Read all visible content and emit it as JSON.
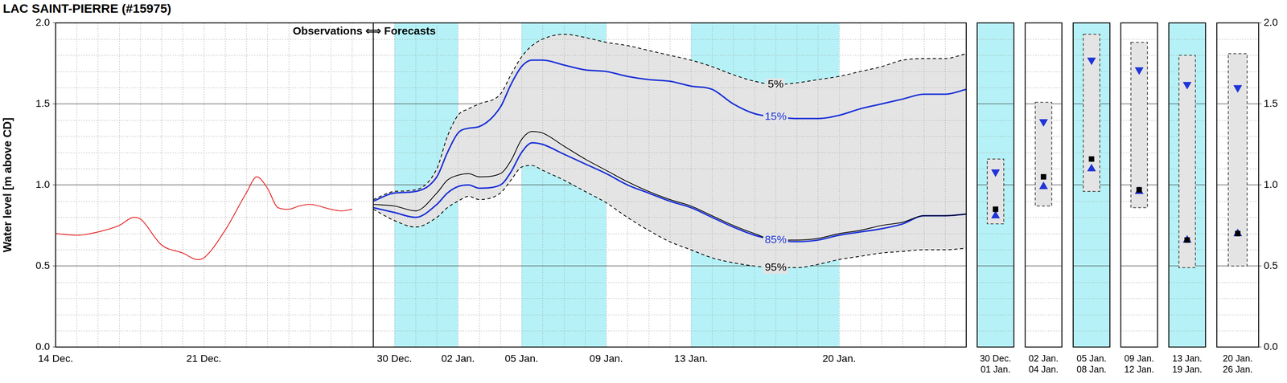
{
  "chart_data": [
    {
      "type": "line",
      "title": "LAC SAINT-PIERRE (#15975)",
      "y_label": "Water level [m above CD]",
      "annotation": "Observations ⟺ Forecasts",
      "divider": 15,
      "bands": [
        {
          "from": 16,
          "to": 19,
          "color": "#b5f1f6"
        },
        {
          "from": 22,
          "to": 26,
          "color": "#b5f1f6"
        },
        {
          "from": 30,
          "to": 37,
          "color": "#b5f1f6"
        }
      ],
      "range_fill": {
        "from": "5%",
        "to": "95%",
        "color": "#e4e4e4"
      },
      "xlim": [
        0,
        43
      ],
      "xticks": [
        {
          "value": 0,
          "label": "14 Dec."
        },
        {
          "value": 7,
          "label": "21 Dec."
        },
        {
          "value": 16,
          "label": "30 Dec."
        },
        {
          "value": 19,
          "label": "02 Jan."
        },
        {
          "value": 22,
          "label": "05 Jan."
        },
        {
          "value": 26,
          "label": "09 Jan."
        },
        {
          "value": 30,
          "label": "13 Jan."
        },
        {
          "value": 37,
          "label": "20 Jan."
        }
      ],
      "ylim": [
        0,
        2
      ],
      "yticks": [
        {
          "value": 0,
          "label": "0.0"
        },
        {
          "value": 0.5,
          "label": "0.5"
        },
        {
          "value": 1,
          "label": "1.0"
        },
        {
          "value": 1.5,
          "label": "1.5"
        },
        {
          "value": 2,
          "label": "2.0"
        }
      ],
      "grid": true,
      "series": [
        {
          "color": "#e31a1c",
          "line_style": "solid",
          "x": [
            0,
            1,
            2,
            3,
            3.7,
            4,
            5,
            6,
            6.7,
            7,
            8,
            9,
            9.5,
            10,
            10.5,
            11,
            11.5,
            12,
            13,
            13.5,
            14
          ],
          "values": [
            0.7,
            0.69,
            0.71,
            0.75,
            0.8,
            0.79,
            0.63,
            0.58,
            0.54,
            0.55,
            0.72,
            0.95,
            1.05,
            0.98,
            0.86,
            0.85,
            0.87,
            0.88,
            0.85,
            0.84,
            0.85
          ]
        },
        {
          "name": "5%",
          "color": "#000000",
          "line_style": "dashed",
          "x": [
            15,
            16,
            17,
            18,
            18.5,
            19,
            19.5,
            20,
            21,
            21.5,
            22,
            22.5,
            23,
            24,
            25,
            26,
            27,
            28,
            29,
            30,
            31,
            32,
            33,
            34,
            35,
            36,
            37,
            38,
            39,
            40,
            41,
            42,
            43
          ],
          "values": [
            0.91,
            0.96,
            0.97,
            1.1,
            1.3,
            1.43,
            1.47,
            1.5,
            1.56,
            1.68,
            1.79,
            1.86,
            1.9,
            1.93,
            1.91,
            1.88,
            1.86,
            1.83,
            1.8,
            1.77,
            1.73,
            1.68,
            1.64,
            1.62,
            1.63,
            1.65,
            1.67,
            1.7,
            1.73,
            1.77,
            1.78,
            1.78,
            1.81
          ]
        },
        {
          "name": "15%",
          "color": "#1f35d8",
          "line_style": "solid",
          "x": [
            15,
            16,
            17,
            18,
            18.5,
            19,
            19.5,
            20,
            21,
            21.5,
            22,
            22.5,
            23,
            24,
            25,
            26,
            27,
            28,
            29,
            30,
            31,
            32,
            33,
            34,
            35,
            36,
            37,
            38,
            39,
            40,
            41,
            42,
            43
          ],
          "values": [
            0.9,
            0.95,
            0.96,
            1.05,
            1.2,
            1.32,
            1.35,
            1.36,
            1.48,
            1.62,
            1.73,
            1.77,
            1.77,
            1.74,
            1.71,
            1.7,
            1.67,
            1.65,
            1.64,
            1.61,
            1.59,
            1.5,
            1.44,
            1.42,
            1.41,
            1.41,
            1.43,
            1.47,
            1.5,
            1.53,
            1.56,
            1.56,
            1.59
          ]
        },
        {
          "color": "#000000",
          "line_style": "solid",
          "x": [
            15,
            16,
            17,
            18,
            18.5,
            19,
            19.5,
            20,
            21,
            21.5,
            22,
            22.5,
            23,
            24,
            25,
            26,
            27,
            28,
            29,
            30,
            31,
            32,
            33,
            34,
            35,
            36,
            37,
            38,
            39,
            40,
            41,
            42,
            43
          ],
          "values": [
            0.88,
            0.87,
            0.84,
            0.95,
            1.03,
            1.06,
            1.07,
            1.05,
            1.07,
            1.15,
            1.28,
            1.33,
            1.32,
            1.24,
            1.16,
            1.09,
            1.02,
            0.96,
            0.91,
            0.87,
            0.81,
            0.75,
            0.7,
            0.66,
            0.66,
            0.67,
            0.7,
            0.72,
            0.75,
            0.77,
            0.81,
            0.81,
            0.82
          ]
        },
        {
          "name": "85%",
          "color": "#1f35d8",
          "line_style": "solid",
          "x": [
            15,
            16,
            17,
            18,
            18.5,
            19,
            19.5,
            20,
            21,
            21.5,
            22,
            22.5,
            23,
            24,
            25,
            26,
            27,
            28,
            29,
            30,
            31,
            32,
            33,
            34,
            35,
            36,
            37,
            38,
            39,
            40,
            41,
            42,
            43
          ],
          "values": [
            0.86,
            0.83,
            0.8,
            0.88,
            0.95,
            0.99,
            1.0,
            0.98,
            1.0,
            1.08,
            1.2,
            1.26,
            1.25,
            1.19,
            1.13,
            1.07,
            1.0,
            0.95,
            0.9,
            0.86,
            0.8,
            0.74,
            0.69,
            0.66,
            0.65,
            0.66,
            0.69,
            0.71,
            0.73,
            0.76,
            0.81,
            0.81,
            0.82
          ]
        },
        {
          "name": "95%",
          "color": "#000000",
          "line_style": "dashed",
          "x": [
            15,
            16,
            17,
            18,
            18.5,
            19,
            19.5,
            20,
            21,
            21.5,
            22,
            22.5,
            23,
            24,
            25,
            26,
            27,
            28,
            29,
            30,
            31,
            32,
            33,
            34,
            35,
            36,
            37,
            38,
            39,
            40,
            41,
            42,
            43
          ],
          "values": [
            0.85,
            0.78,
            0.74,
            0.8,
            0.86,
            0.9,
            0.93,
            0.91,
            0.95,
            1.03,
            1.11,
            1.12,
            1.09,
            1.03,
            0.96,
            0.89,
            0.8,
            0.72,
            0.65,
            0.6,
            0.55,
            0.52,
            0.5,
            0.49,
            0.49,
            0.51,
            0.54,
            0.56,
            0.58,
            0.59,
            0.6,
            0.6,
            0.61
          ]
        }
      ]
    },
    {
      "type": "range",
      "color": "#b5f1f6",
      "categories": [
        "30 Dec.\n01 Jan."
      ],
      "ranges": [
        [
          0.76,
          1.16
        ]
      ],
      "range_color": "#e4e4e4",
      "ylim": [
        0,
        2
      ],
      "yticks": [
        {
          "value": 0,
          "label": "0.0"
        },
        {
          "value": 0.5,
          "label": "0.5"
        },
        {
          "value": 1,
          "label": "1.0"
        },
        {
          "value": 1.5,
          "label": "1.5"
        },
        {
          "value": 2,
          "label": "2.0"
        }
      ],
      "grid": true,
      "tick_labels": "x",
      "series": [
        {
          "marker": "triangle-down",
          "color": "#1f35d8",
          "values": [
            1.08
          ]
        },
        {
          "marker": "square",
          "color": "#000000",
          "values": [
            0.85
          ]
        },
        {
          "marker": "triangle-up",
          "color": "#1f35d8",
          "values": [
            0.81
          ]
        }
      ]
    },
    {
      "type": "range",
      "color": "#ffffff",
      "categories": [
        "02 Jan.\n04 Jan."
      ],
      "ranges": [
        [
          0.87,
          1.51
        ]
      ],
      "range_color": "#e4e4e4",
      "ylim": [
        0,
        2
      ],
      "yticks": [
        {
          "value": 0,
          "label": "0.0"
        },
        {
          "value": 0.5,
          "label": "0.5"
        },
        {
          "value": 1,
          "label": "1.0"
        },
        {
          "value": 1.5,
          "label": "1.5"
        },
        {
          "value": 2,
          "label": "2.0"
        }
      ],
      "grid": true,
      "tick_labels": "x",
      "series": [
        {
          "marker": "triangle-down",
          "color": "#1f35d8",
          "values": [
            1.39
          ]
        },
        {
          "marker": "square",
          "color": "#000000",
          "values": [
            1.05
          ]
        },
        {
          "marker": "triangle-up",
          "color": "#1f35d8",
          "values": [
            0.99
          ]
        }
      ]
    },
    {
      "type": "range",
      "color": "#b5f1f6",
      "categories": [
        "05 Jan.\n08 Jan."
      ],
      "ranges": [
        [
          0.96,
          1.93
        ]
      ],
      "range_color": "#e4e4e4",
      "ylim": [
        0,
        2
      ],
      "yticks": [
        {
          "value": 0,
          "label": "0.0"
        },
        {
          "value": 0.5,
          "label": "0.5"
        },
        {
          "value": 1,
          "label": "1.0"
        },
        {
          "value": 1.5,
          "label": "1.5"
        },
        {
          "value": 2,
          "label": "2.0"
        }
      ],
      "grid": true,
      "tick_labels": "x",
      "series": [
        {
          "marker": "triangle-down",
          "color": "#1f35d8",
          "values": [
            1.77
          ]
        },
        {
          "marker": "square",
          "color": "#000000",
          "values": [
            1.16
          ]
        },
        {
          "marker": "triangle-up",
          "color": "#1f35d8",
          "values": [
            1.1
          ]
        }
      ]
    },
    {
      "type": "range",
      "color": "#ffffff",
      "categories": [
        "09 Jan.\n12 Jan."
      ],
      "ranges": [
        [
          0.86,
          1.88
        ]
      ],
      "range_color": "#e4e4e4",
      "ylim": [
        0,
        2
      ],
      "yticks": [
        {
          "value": 0,
          "label": "0.0"
        },
        {
          "value": 0.5,
          "label": "0.5"
        },
        {
          "value": 1,
          "label": "1.0"
        },
        {
          "value": 1.5,
          "label": "1.5"
        },
        {
          "value": 2,
          "label": "2.0"
        }
      ],
      "grid": true,
      "tick_labels": "x",
      "series": [
        {
          "marker": "triangle-down",
          "color": "#1f35d8",
          "values": [
            1.71
          ]
        },
        {
          "marker": "square",
          "color": "#000000",
          "values": [
            0.97
          ]
        },
        {
          "marker": "triangle-up",
          "color": "#1f35d8",
          "values": [
            0.96
          ]
        }
      ]
    },
    {
      "type": "range",
      "color": "#b5f1f6",
      "categories": [
        "13 Jan.\n19 Jan."
      ],
      "ranges": [
        [
          0.49,
          1.8
        ]
      ],
      "range_color": "#e4e4e4",
      "ylim": [
        0,
        2
      ],
      "yticks": [
        {
          "value": 0,
          "label": "0.0"
        },
        {
          "value": 0.5,
          "label": "0.5"
        },
        {
          "value": 1,
          "label": "1.0"
        },
        {
          "value": 1.5,
          "label": "1.5"
        },
        {
          "value": 2,
          "label": "2.0"
        }
      ],
      "grid": true,
      "tick_labels": "x",
      "series": [
        {
          "marker": "triangle-down",
          "color": "#1f35d8",
          "values": [
            1.62
          ]
        },
        {
          "marker": "square",
          "color": "#000000",
          "values": [
            0.66
          ]
        },
        {
          "marker": "triangle-up",
          "color": "#1f35d8",
          "values": [
            0.66
          ]
        }
      ]
    },
    {
      "type": "range",
      "color": "#ffffff",
      "categories": [
        "20 Jan.\n26 Jan."
      ],
      "ranges": [
        [
          0.5,
          1.81
        ]
      ],
      "range_color": "#e4e4e4",
      "ylim": [
        0,
        2
      ],
      "yticks": [
        {
          "value": 0,
          "label": "0.0"
        },
        {
          "value": 0.5,
          "label": "0.5"
        },
        {
          "value": 1,
          "label": "1.0"
        },
        {
          "value": 1.5,
          "label": "1.5"
        },
        {
          "value": 2,
          "label": "2.0"
        }
      ],
      "grid": true,
      "series": [
        {
          "marker": "triangle-down",
          "color": "#1f35d8",
          "values": [
            1.6
          ]
        },
        {
          "marker": "square",
          "color": "#000000",
          "values": [
            0.7
          ]
        },
        {
          "marker": "triangle-up",
          "color": "#1f35d8",
          "values": [
            0.7
          ]
        }
      ]
    }
  ]
}
